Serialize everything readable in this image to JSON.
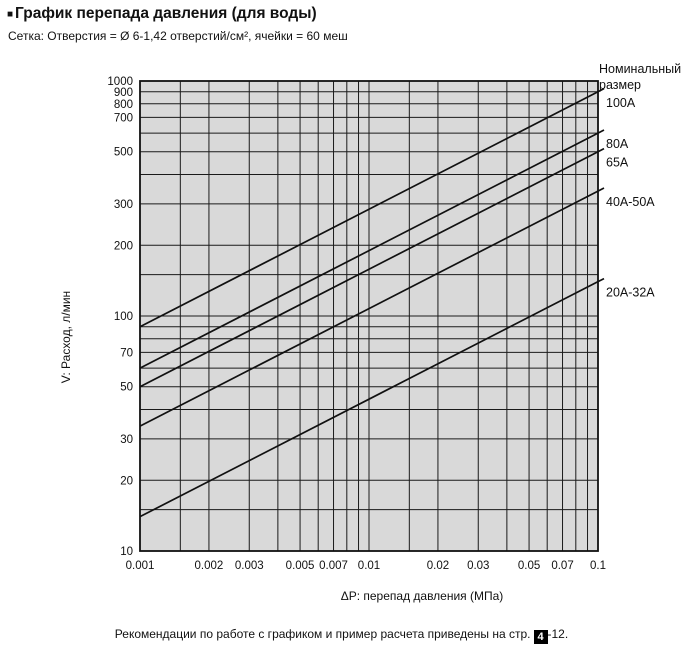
{
  "page": {
    "title_bullet": "■",
    "title": "График перепада давления (для воды)",
    "subtitle": "Сетка: Отверстия = Ø 6-1,42 отверстий/см², ячейки = 60 меш",
    "footer": {
      "text_before": "Рекомендации по работе с графиком и пример расчета приведены на стр.",
      "page_badge": "4",
      "text_after": "-12."
    }
  },
  "chart_data": {
    "type": "line",
    "title": "График перепада давления (для воды)",
    "x_scale": "log",
    "y_scale": "log",
    "xlabel": "ΔP: перепад давления (МПа)",
    "ylabel": "V: Расход, л/мин",
    "xlim": [
      0.001,
      0.1
    ],
    "ylim": [
      10,
      1000
    ],
    "x_tick_values": [
      0.001,
      0.002,
      0.003,
      0.005,
      0.007,
      0.01,
      0.02,
      0.03,
      0.05,
      0.07,
      0.1
    ],
    "x_tick_labels": [
      "0.001",
      "0.002",
      "0.003",
      "0.005",
      "0.007",
      "0.01",
      "0.02",
      "0.03",
      "0.05",
      "0.07",
      "0.1"
    ],
    "y_tick_values": [
      10,
      20,
      30,
      50,
      70,
      100,
      200,
      300,
      500,
      700,
      800,
      900,
      1000
    ],
    "y_tick_labels": [
      "10",
      "20",
      "30",
      "50",
      "70",
      "100",
      "200",
      "300",
      "500",
      "700",
      "800",
      "900",
      "1000"
    ],
    "grid": true,
    "grid_mantissas": [
      1,
      1.5,
      2,
      3,
      4,
      5,
      6,
      7,
      8,
      9
    ],
    "legend_title": [
      "Номинальный",
      "размер"
    ],
    "legend_position": "right",
    "colors": {
      "plot_bg": "#d9d9d9",
      "line": "#111111",
      "grid": "#1a1a1a",
      "border": "#111111"
    },
    "series": [
      {
        "name": "100A",
        "points": [
          [
            0.001,
            90
          ],
          [
            0.1,
            900
          ]
        ]
      },
      {
        "name": "80A",
        "points": [
          [
            0.001,
            60
          ],
          [
            0.1,
            600
          ]
        ]
      },
      {
        "name": "65A",
        "points": [
          [
            0.001,
            50
          ],
          [
            0.1,
            500
          ]
        ]
      },
      {
        "name": "40A-50A",
        "points": [
          [
            0.001,
            34
          ],
          [
            0.1,
            340
          ]
        ]
      },
      {
        "name": "20A-32A",
        "points": [
          [
            0.001,
            14
          ],
          [
            0.1,
            140
          ]
        ]
      }
    ]
  }
}
